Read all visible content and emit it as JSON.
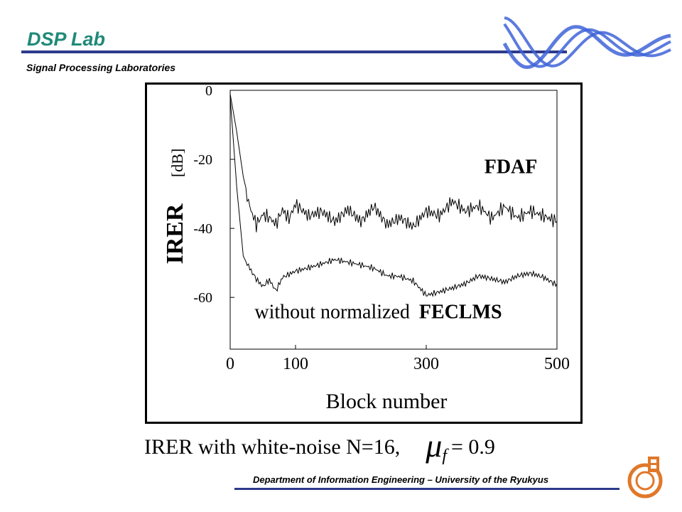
{
  "header": {
    "lab_name": "DSP Lab",
    "subtitle": "Signal Processing Laboratories"
  },
  "caption": {
    "text": "IRER with white-noise N=16,",
    "mu_symbol": "μ",
    "mu_subscript": "f",
    "mu_value": "= 0.9"
  },
  "footer": {
    "text": "Department of Information Engineering – University of the Ryukyus"
  },
  "colors": {
    "lab_title": "#1f8a78",
    "rule": "#2d3a8c",
    "wave": "#3f64d8",
    "logo": "#e0782a"
  },
  "icons": {
    "header_logo": "wave-logo-icon",
    "footer_logo": "university-emblem-icon"
  },
  "chart_data": {
    "type": "line",
    "xlabel": "Block number",
    "ylabel_main": "IRER",
    "ylabel_unit": "[dB]",
    "xlim": [
      0,
      500
    ],
    "ylim": [
      -75,
      0
    ],
    "x_ticks": [
      0,
      100,
      300,
      500
    ],
    "y_ticks": [
      0,
      -20,
      -40,
      -60
    ],
    "grid": false,
    "annotations": [
      {
        "text": "FDAF",
        "x": 470,
        "y": -24
      },
      {
        "text_normal": "without normalized",
        "text_bold": "FECLMS",
        "x": 70,
        "y": -66
      }
    ],
    "series": [
      {
        "name": "FDAF",
        "x": [
          0,
          10,
          20,
          30,
          40,
          50,
          60,
          70,
          80,
          90,
          100,
          120,
          140,
          160,
          180,
          200,
          220,
          240,
          260,
          280,
          300,
          320,
          340,
          360,
          380,
          400,
          420,
          440,
          460,
          480,
          500
        ],
        "y": [
          -1,
          -12,
          -25,
          -33,
          -38,
          -35,
          -36,
          -38,
          -34,
          -37,
          -33,
          -37,
          -36,
          -39,
          -35,
          -38,
          -33,
          -38,
          -36,
          -39,
          -35,
          -37,
          -33,
          -36,
          -34,
          -37,
          -33,
          -36,
          -34,
          -36,
          -38
        ]
      },
      {
        "name": "without normalized FECLMS",
        "x": [
          0,
          10,
          20,
          30,
          40,
          50,
          60,
          70,
          80,
          100,
          120,
          140,
          160,
          180,
          200,
          220,
          240,
          260,
          280,
          300,
          320,
          340,
          360,
          380,
          400,
          420,
          440,
          460,
          480,
          500
        ],
        "y": [
          -2,
          -28,
          -48,
          -52,
          -55,
          -57,
          -55,
          -58,
          -54,
          -52,
          -51,
          -50,
          -49,
          -50,
          -51,
          -52,
          -54,
          -54,
          -55,
          -59,
          -58,
          -57,
          -56,
          -54,
          -55,
          -56,
          -54,
          -53,
          -54,
          -56
        ]
      }
    ]
  }
}
